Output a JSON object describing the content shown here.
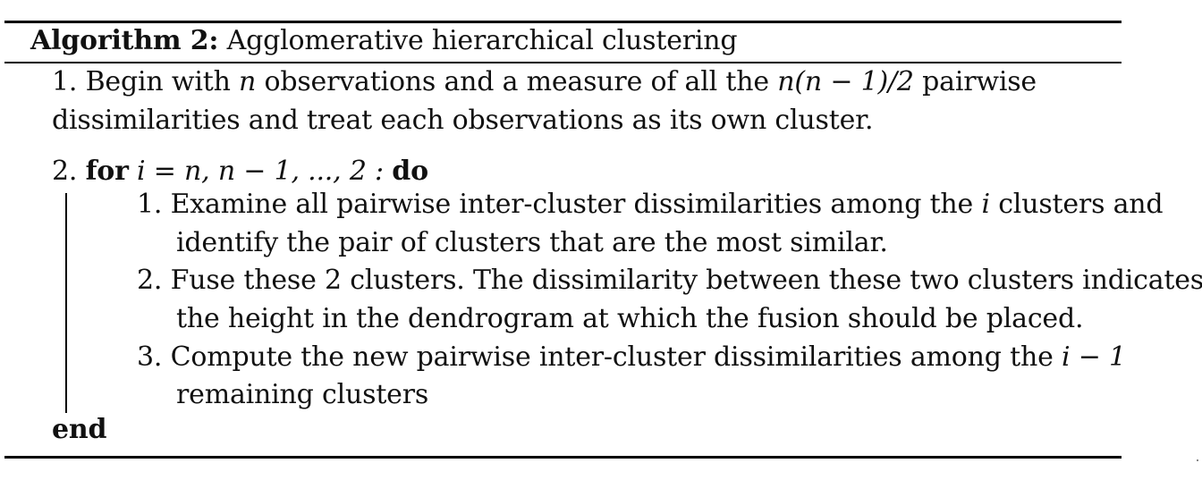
{
  "algorithm": {
    "label": "Algorithm 2:",
    "title": "Agglomerative hierarchical clustering"
  },
  "step1": {
    "number": "1.",
    "line1_a": "Begin with",
    "n_var": "n",
    "line1_b": "observations and a measure of all the",
    "line1_formula": "n(n − 1)/2",
    "line1_c": "pairwise",
    "line2": "dissimilarities and treat each observations as its own cluster."
  },
  "step2": {
    "number": "2.",
    "keyword_for": "for",
    "loop_expr": "i = n, n − 1, ..., 2 :",
    "keyword_do": "do",
    "substeps": [
      {
        "number": "1.",
        "line1_a": "Examine all pairwise inter-cluster dissimilarities among the",
        "i_var": "i",
        "line1_b": "clusters and",
        "line2": "identify the pair of clusters that are the most similar."
      },
      {
        "number": "2.",
        "line1": "Fuse these 2 clusters. The dissimilarity between these two clusters indicates",
        "line2": "the height in the dendrogram at which the fusion should be placed."
      },
      {
        "number": "3.",
        "line1_a": "Compute the new pairwise inter-cluster dissimilarities among the",
        "formula": "i − 1",
        "line2": "remaining clusters"
      }
    ],
    "keyword_end": "end"
  }
}
